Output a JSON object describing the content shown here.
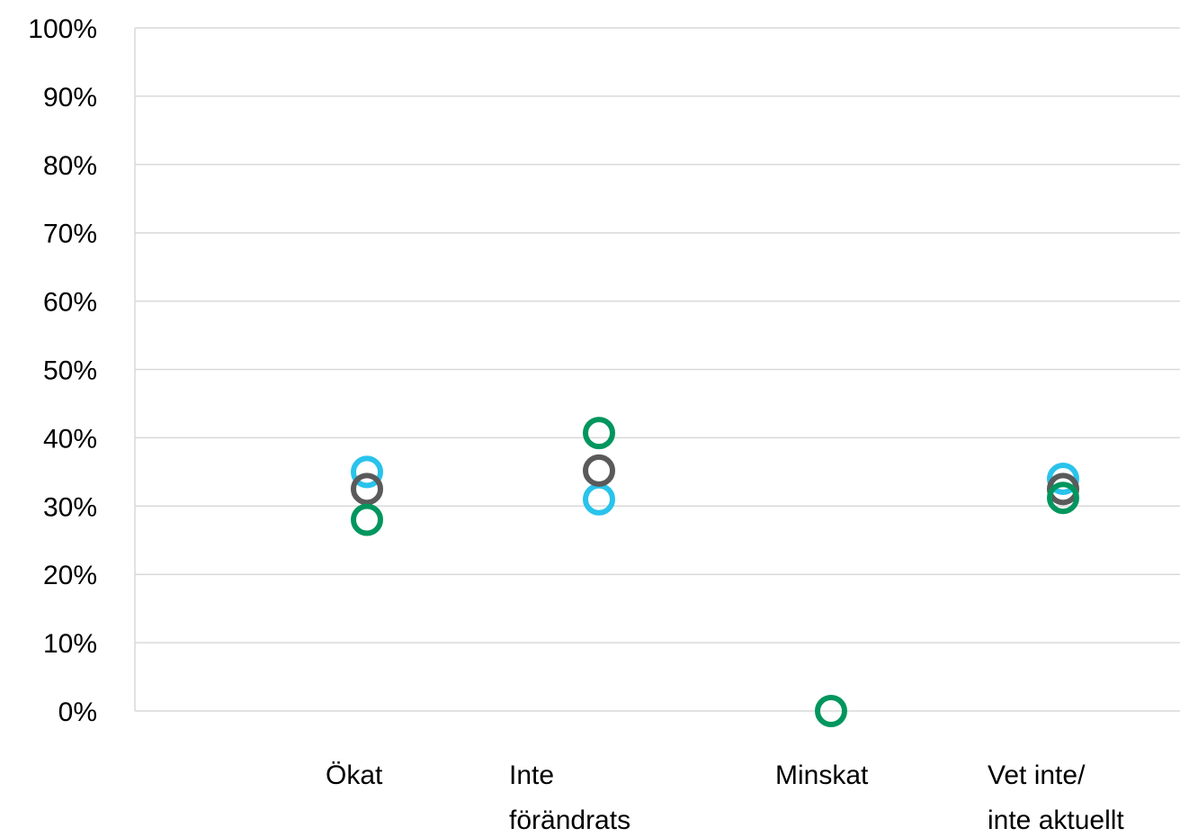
{
  "chart_data": {
    "type": "scatter",
    "categories": [
      "Ökat",
      "Inte förändrats",
      "Minskat",
      "Vet inte/ inte aktuellt"
    ],
    "category_labels": [
      [
        "Ökat"
      ],
      [
        "Inte",
        "förändrats"
      ],
      [
        "Minskat"
      ],
      [
        "Vet inte/",
        "inte aktuellt"
      ]
    ],
    "series": [
      {
        "color": "#29C3EC",
        "values": [
          35,
          31,
          null,
          34
        ]
      },
      {
        "color": "#5A5A5A",
        "values": [
          32.5,
          35.2,
          null,
          32.5
        ]
      },
      {
        "color": "#00965E",
        "values": [
          28,
          40.7,
          0,
          31.2
        ]
      }
    ],
    "ylim": [
      0,
      100
    ],
    "yticks": [
      "0%",
      "10%",
      "20%",
      "30%",
      "40%",
      "50%",
      "60%",
      "70%",
      "80%",
      "90%",
      "100%"
    ],
    "grid": true,
    "gridline_color": "#D9D9D9",
    "title": "",
    "xlabel": "",
    "ylabel": ""
  }
}
